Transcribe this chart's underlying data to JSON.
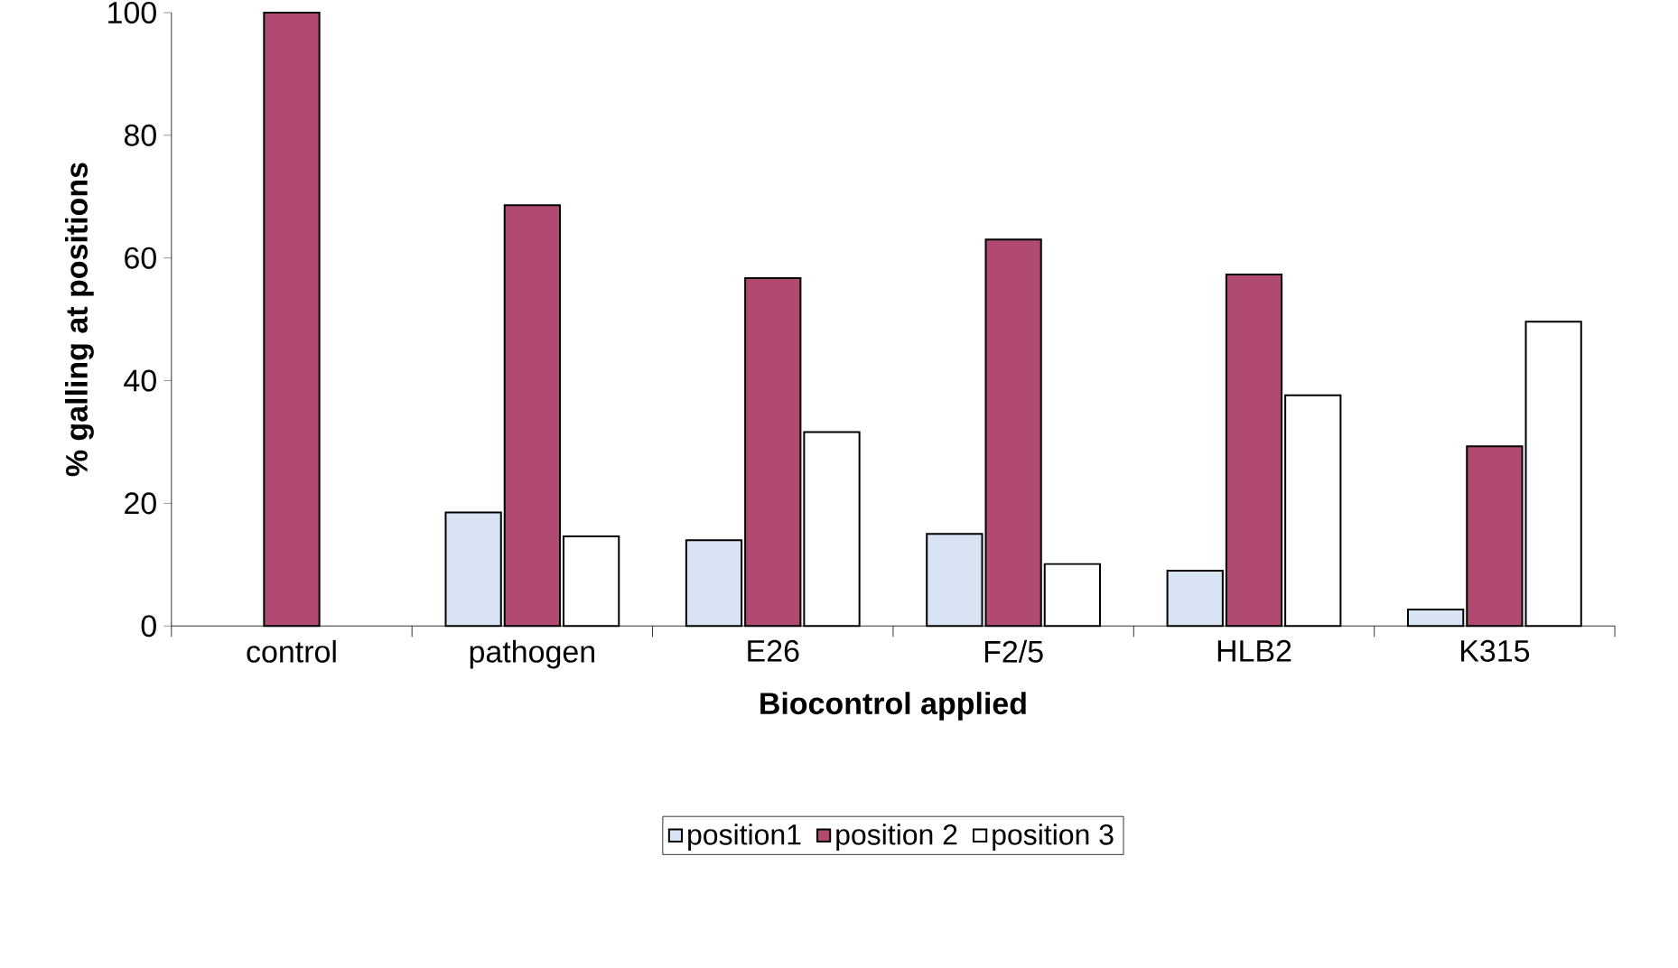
{
  "chart_data": {
    "type": "bar",
    "xlabel": "Biocontrol applied",
    "ylabel": "% galling at positions",
    "categories": [
      "control",
      "pathogen",
      "E26",
      "F2/5",
      "HLB2",
      "K315"
    ],
    "series": [
      {
        "name": "position1",
        "color": "#d8e4f4",
        "values": [
          null,
          18.5,
          14,
          15,
          9,
          2.7
        ]
      },
      {
        "name": "position 2",
        "color": "#b04a72",
        "values": [
          100,
          68.6,
          56.7,
          63,
          57.3,
          29.3
        ]
      },
      {
        "name": "position 3",
        "color": "#ffffff",
        "values": [
          null,
          14.6,
          31.6,
          10.1,
          37.6,
          49.6
        ]
      }
    ],
    "ylim": [
      0,
      100
    ],
    "yticks": [
      0,
      20,
      40,
      60,
      80,
      100
    ],
    "grid": false,
    "legend": "bottom"
  }
}
